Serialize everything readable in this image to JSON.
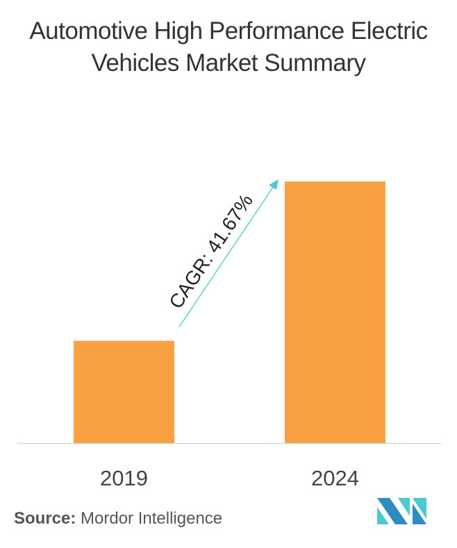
{
  "title": "Automotive High Performance Electric Vehicles Market Summary",
  "source_label": "Source:",
  "source_value": "Mordor Intelligence",
  "colors": {
    "bar": "#F9A045",
    "arrow": "#4CC9CF",
    "logo_dark": "#2E8CC0",
    "logo_light": "#4CC9CF"
  },
  "logo": "mordor-intelligence-logo",
  "chart_data": {
    "type": "bar",
    "categories": [
      "2019",
      "2024"
    ],
    "values": [
      1,
      2.56
    ],
    "title": "Automotive High Performance Electric Vehicles Market Summary",
    "xlabel": "",
    "ylabel": "",
    "grid": false,
    "annotation": "CAGR: 41.67%"
  }
}
